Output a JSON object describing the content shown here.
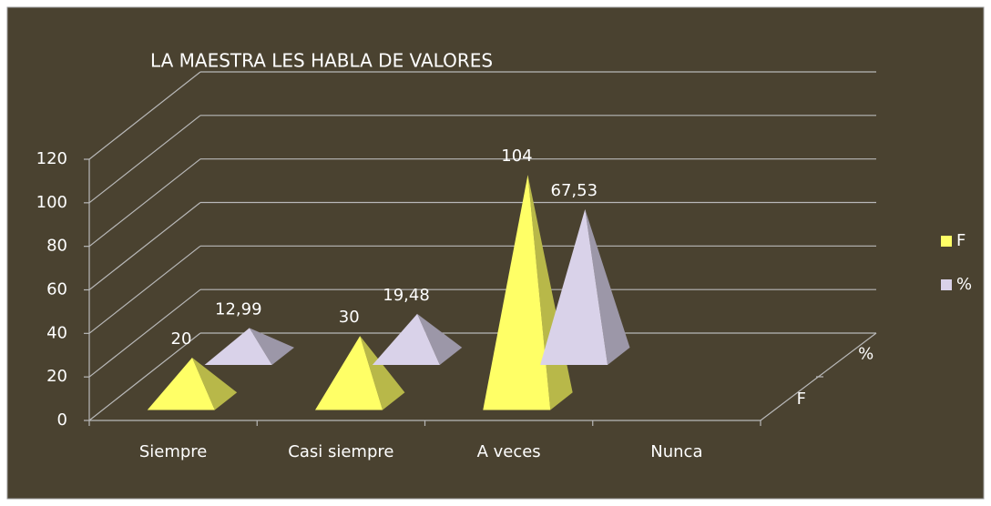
{
  "chart_data": {
    "type": "pyramid",
    "title": "LA MAESTRA LES HABLA DE VALORES",
    "categories": [
      "Siempre",
      "Casi siempre",
      "A veces",
      "Nunca"
    ],
    "series": [
      {
        "name": "F",
        "color": "#ffff66",
        "values": [
          20,
          30,
          104,
          null
        ]
      },
      {
        "name": "%",
        "color": "#d9d2e9",
        "values": [
          12.99,
          19.48,
          67.53,
          null
        ],
        "value_labels": [
          "12,99",
          "19,48",
          "67,53",
          null
        ]
      }
    ],
    "ylim": [
      0,
      120
    ],
    "yticks": [
      0,
      20,
      40,
      60,
      80,
      100,
      120
    ],
    "grid": true,
    "legend": "right"
  }
}
